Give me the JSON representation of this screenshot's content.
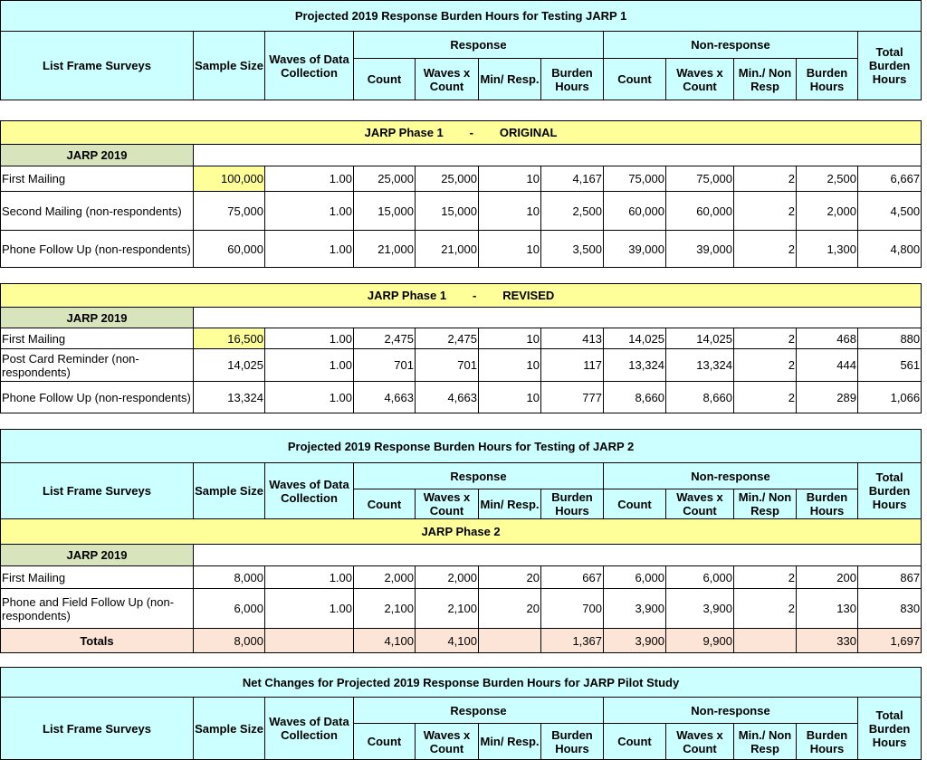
{
  "colors": {
    "header": "#ccffff",
    "section": "#ffff99",
    "group": "#d8e4bc",
    "totals": "#fce4d6",
    "highlight": "#ffff99"
  },
  "header": {
    "list_frame": "List Frame Surveys",
    "sample_size": "Sample Size",
    "waves": "Waves of Data Collection",
    "response": "Response",
    "nonresponse": "Non-response",
    "total": "Total Burden Hours",
    "count": "Count",
    "waves_x_count": "Waves x Count",
    "min_resp": "Min/ Resp.",
    "burden_hours": "Burden Hours",
    "min_non_resp": "Min./ Non Resp"
  },
  "table1": {
    "title": "Projected 2019 Response Burden Hours for Testing JARP 1"
  },
  "table2": {
    "section": "JARP Phase 1        -        ORIGINAL",
    "group": "JARP 2019",
    "rows": [
      [
        "First Mailing",
        "100,000",
        "1.00",
        "25,000",
        "25,000",
        "10",
        "4,167",
        "75,000",
        "75,000",
        "2",
        "2,500",
        "6,667"
      ],
      [
        "Second Mailing (non-respondents)",
        "75,000",
        "1.00",
        "15,000",
        "15,000",
        "10",
        "2,500",
        "60,000",
        "60,000",
        "2",
        "2,000",
        "4,500"
      ],
      [
        "Phone Follow Up (non-respondents)",
        "60,000",
        "1.00",
        "21,000",
        "21,000",
        "10",
        "3,500",
        "39,000",
        "39,000",
        "2",
        "1,300",
        "4,800"
      ]
    ]
  },
  "table3": {
    "section": "JARP Phase 1        -        REVISED",
    "group": "JARP 2019",
    "rows": [
      [
        "First Mailing",
        "16,500",
        "1.00",
        "2,475",
        "2,475",
        "10",
        "413",
        "14,025",
        "14,025",
        "2",
        "468",
        "880"
      ],
      [
        "Post Card Reminder (non-respondents)",
        "14,025",
        "1.00",
        "701",
        "701",
        "10",
        "117",
        "13,324",
        "13,324",
        "2",
        "444",
        "561"
      ],
      [
        "Phone Follow Up (non-respondents)",
        "13,324",
        "1.00",
        "4,663",
        "4,663",
        "10",
        "777",
        "8,660",
        "8,660",
        "2",
        "289",
        "1,066"
      ]
    ]
  },
  "table4": {
    "title": "Projected 2019 Response Burden Hours for Testing of JARP 2",
    "section": "JARP Phase 2",
    "group": "JARP 2019",
    "rows": [
      [
        "First Mailing",
        "8,000",
        "1.00",
        "2,000",
        "2,000",
        "20",
        "667",
        "6,000",
        "6,000",
        "2",
        "200",
        "867"
      ],
      [
        "Phone and Field Follow Up (non-respondents)",
        "6,000",
        "1.00",
        "2,100",
        "2,100",
        "20",
        "700",
        "3,900",
        "3,900",
        "2",
        "130",
        "830"
      ]
    ],
    "totals": [
      "Totals",
      "8,000",
      "",
      "4,100",
      "4,100",
      "",
      "1,367",
      "3,900",
      "9,900",
      "",
      "330",
      "1,697"
    ]
  },
  "table5": {
    "title": "Net Changes for Projected 2019 Response Burden Hours for JARP Pilot Study"
  }
}
